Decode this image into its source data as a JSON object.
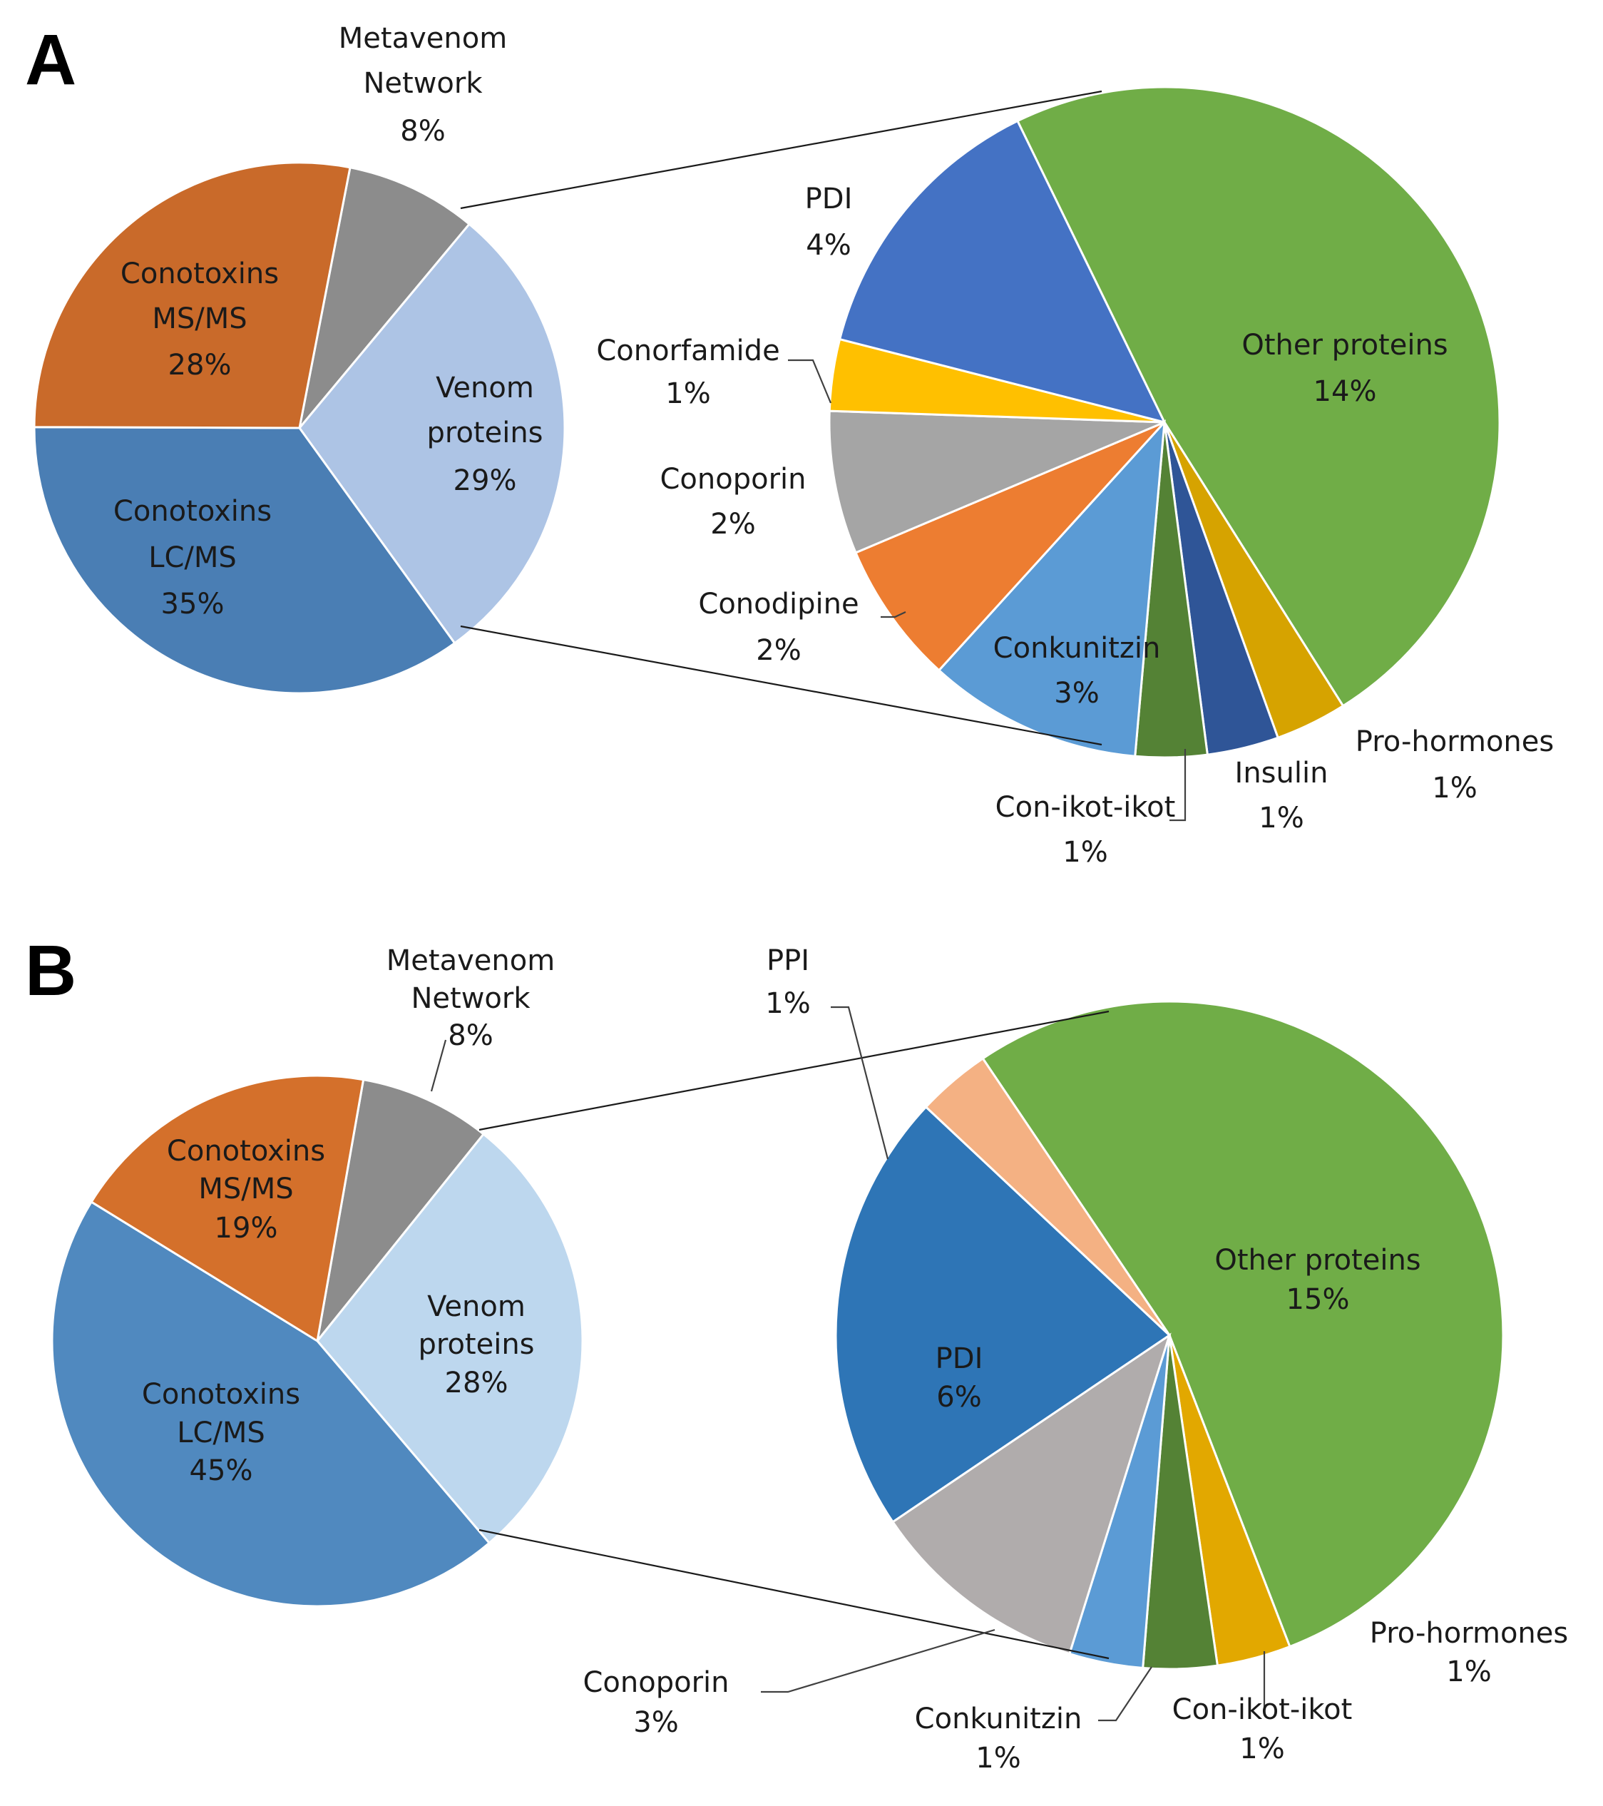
{
  "chart_data": [
    {
      "panel": "A",
      "type": "pie",
      "subtype": "pie-of-pie",
      "main": {
        "slices": [
          {
            "label": "Metavenom Network",
            "lines": [
              "Metavenom",
              "Network"
            ],
            "value": 8,
            "pct": "8%",
            "color": "#8c8c8c"
          },
          {
            "label": "Venom proteins",
            "lines": [
              "Venom",
              "proteins"
            ],
            "value": 29,
            "pct": "29%",
            "color": "#adc4e5"
          },
          {
            "label": "Conotoxins LC/MS",
            "lines": [
              "Conotoxins",
              "LC/MS"
            ],
            "value": 35,
            "pct": "35%",
            "color": "#4a7eb4"
          },
          {
            "label": "Conotoxins MS/MS",
            "lines": [
              "Conotoxins",
              "MS/MS"
            ],
            "value": 28,
            "pct": "28%",
            "color": "#c96a2a"
          }
        ]
      },
      "breakdown_of": "Venom proteins",
      "secondary": {
        "slices": [
          {
            "label": "Other proteins",
            "value": 14,
            "pct": "14%",
            "color": "#70ad47"
          },
          {
            "label": "Pro-hormones",
            "value": 1,
            "pct": "1%",
            "color": "#d6a300"
          },
          {
            "label": "Insulin",
            "value": 1,
            "pct": "1%",
            "color": "#2f5597"
          },
          {
            "label": "Con-ikot-ikot",
            "value": 1,
            "pct": "1%",
            "color": "#548235"
          },
          {
            "label": "Conkunitzin",
            "value": 3,
            "pct": "3%",
            "color": "#5b9bd5"
          },
          {
            "label": "Conodipine",
            "value": 2,
            "pct": "2%",
            "color": "#ed7d31"
          },
          {
            "label": "Conoporin",
            "value": 2,
            "pct": "2%",
            "color": "#a5a5a5"
          },
          {
            "label": "Conorfamide",
            "value": 1,
            "pct": "1%",
            "color": "#ffc000"
          },
          {
            "label": "PDI",
            "value": 4,
            "pct": "4%",
            "color": "#4472c4"
          }
        ]
      }
    },
    {
      "panel": "B",
      "type": "pie",
      "subtype": "pie-of-pie",
      "main": {
        "slices": [
          {
            "label": "Metavenom Network",
            "lines": [
              "Metavenom",
              "Network"
            ],
            "value": 8,
            "pct": "8%",
            "color": "#8c8c8c"
          },
          {
            "label": "Venom proteins",
            "lines": [
              "Venom",
              "proteins"
            ],
            "value": 28,
            "pct": "28%",
            "color": "#bdd7ee"
          },
          {
            "label": "Conotoxins LC/MS",
            "lines": [
              "Conotoxins",
              "LC/MS"
            ],
            "value": 45,
            "pct": "45%",
            "color": "#5089bf"
          },
          {
            "label": "Conotoxins MS/MS",
            "lines": [
              "Conotoxins",
              "MS/MS"
            ],
            "value": 19,
            "pct": "19%",
            "color": "#d4702b"
          }
        ]
      },
      "breakdown_of": "Venom proteins",
      "secondary": {
        "slices": [
          {
            "label": "Other proteins",
            "value": 15,
            "pct": "15%",
            "color": "#70ad47"
          },
          {
            "label": "Pro-hormones",
            "value": 1,
            "pct": "1%",
            "color": "#e2a800"
          },
          {
            "label": "Con-ikot-ikot",
            "value": 1,
            "pct": "1%",
            "color": "#548235"
          },
          {
            "label": "Conkunitzin",
            "value": 1,
            "pct": "1%",
            "color": "#5b9bd5"
          },
          {
            "label": "Conoporin",
            "value": 3,
            "pct": "3%",
            "color": "#b0acac"
          },
          {
            "label": "PDI",
            "value": 6,
            "pct": "6%",
            "color": "#2e75b6"
          },
          {
            "label": "PPI",
            "value": 1,
            "pct": "1%",
            "color": "#f4b183"
          }
        ]
      }
    }
  ]
}
